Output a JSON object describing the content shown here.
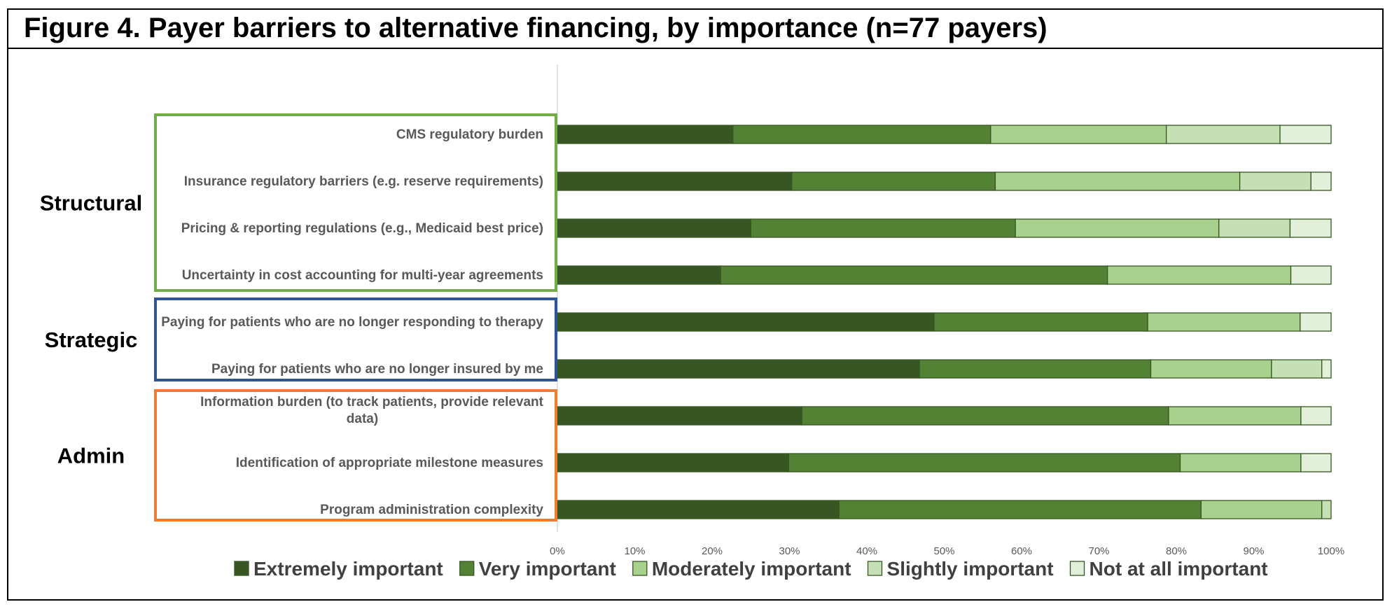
{
  "title": "Figure 4. Payer barriers to alternative financing, by importance (n=77 payers)",
  "colors": {
    "extremely": "#375623",
    "very": "#548235",
    "moderately": "#a9d18e",
    "slightly": "#c5e0b4",
    "not_at_all": "#e2f0d9",
    "bar_stroke": "#375623",
    "structural_box": "#70ad47",
    "strategic_box": "#2f5597",
    "admin_box": "#ed7d31"
  },
  "chart_data": {
    "type": "bar",
    "orientation": "horizontal",
    "stacked": true,
    "title": "Figure 4. Payer barriers to alternative financing, by importance (n=77 payers)",
    "xlim": [
      0,
      100
    ],
    "x_ticks": [
      "0%",
      "10%",
      "20%",
      "30%",
      "40%",
      "50%",
      "60%",
      "70%",
      "80%",
      "90%",
      "100%"
    ],
    "categories": [
      [
        "CMS regulatory burden"
      ],
      [
        "Insurance regulatory barriers (e.g. reserve requirements)"
      ],
      [
        "Pricing & reporting regulations (e.g., Medicaid best price)"
      ],
      [
        "Uncertainty in cost accounting for multi-year agreements"
      ],
      [
        "Paying for patients who are no longer responding to therapy"
      ],
      [
        "Paying for patients who are no longer insured by me"
      ],
      [
        "Information burden (to track patients, provide relevant",
        "data)"
      ],
      [
        "Identification of appropriate milestone measures"
      ],
      [
        "Program administration complexity"
      ]
    ],
    "groups": [
      {
        "name": "Structural",
        "rows": [
          0,
          1,
          2,
          3
        ],
        "color_key": "structural_box"
      },
      {
        "name": "Strategic",
        "rows": [
          4,
          5
        ],
        "color_key": "strategic_box"
      },
      {
        "name": "Admin",
        "rows": [
          6,
          7,
          8
        ],
        "color_key": "admin_box"
      }
    ],
    "series": [
      {
        "name": "Extremely important",
        "color_key": "extremely",
        "values": [
          22.7,
          30.3,
          25.0,
          21.1,
          48.7,
          46.8,
          31.6,
          29.9,
          36.4
        ]
      },
      {
        "name": "Very important",
        "color_key": "very",
        "values": [
          33.3,
          26.3,
          34.2,
          50.0,
          27.6,
          29.9,
          47.4,
          50.6,
          46.8
        ]
      },
      {
        "name": "Moderately important",
        "color_key": "moderately",
        "values": [
          22.7,
          31.6,
          26.3,
          23.7,
          19.7,
          15.6,
          17.1,
          15.6,
          15.6
        ]
      },
      {
        "name": "Slightly important",
        "color_key": "slightly",
        "values": [
          14.7,
          9.2,
          9.2,
          0,
          0,
          6.5,
          0,
          0,
          1.2
        ]
      },
      {
        "name": "Not at all important",
        "color_key": "not_at_all",
        "values": [
          6.6,
          2.6,
          5.3,
          5.2,
          4.0,
          1.2,
          3.9,
          3.9,
          0
        ]
      }
    ]
  }
}
